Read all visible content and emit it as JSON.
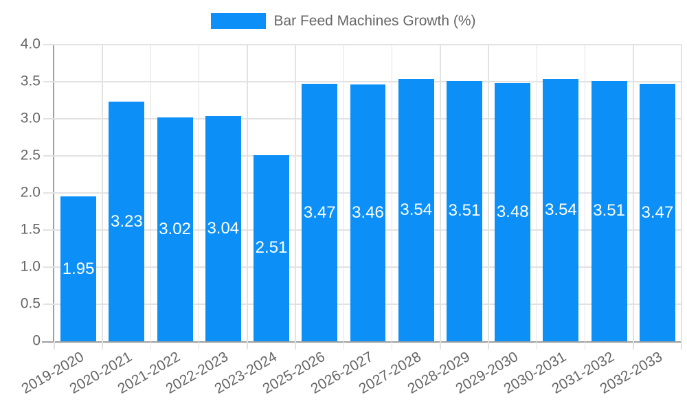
{
  "chart_data": {
    "type": "bar",
    "title": "",
    "legend": {
      "label": "Bar Feed Machines Growth (%)",
      "position": "top-center"
    },
    "categories": [
      "2019-2020",
      "2020-2021",
      "2021-2022",
      "2022-2023",
      "2023-2024",
      "2025-2026",
      "2026-2027",
      "2027-2028",
      "2028-2029",
      "2029-2030",
      "2030-2031",
      "2031-2032",
      "2032-2033"
    ],
    "series": [
      {
        "name": "Bar Feed Machines Growth (%)",
        "values": [
          1.95,
          3.23,
          3.02,
          3.04,
          2.51,
          3.47,
          3.46,
          3.54,
          3.51,
          3.48,
          3.54,
          3.51,
          3.47
        ]
      }
    ],
    "value_labels": [
      "1.95",
      "3.23",
      "3.02",
      "3.04",
      "2.51",
      "3.47",
      "3.46",
      "3.54",
      "3.51",
      "3.48",
      "3.54",
      "3.51",
      "3.47"
    ],
    "xlabel": "",
    "ylabel": "",
    "ylim": [
      0,
      4
    ],
    "y_ticks": [
      {
        "value": 0,
        "label": "0"
      },
      {
        "value": 0.5,
        "label": "0.5"
      },
      {
        "value": 1.0,
        "label": "1.0"
      },
      {
        "value": 1.5,
        "label": "1.5"
      },
      {
        "value": 2.0,
        "label": "2.0"
      },
      {
        "value": 2.5,
        "label": "2.5"
      },
      {
        "value": 3.0,
        "label": "3.0"
      },
      {
        "value": 3.5,
        "label": "3.5"
      },
      {
        "value": 4.0,
        "label": "4.0"
      }
    ],
    "grid": true,
    "x_tick_rotation_deg": -30,
    "colors": {
      "bar": "#0c90f8",
      "axis": "#9e9e9e",
      "gridline": "#e2e2e2",
      "tick_text": "#666666",
      "legend_text": "#666666",
      "value_label_text": "#ffffff",
      "background": "#ffffff"
    }
  }
}
